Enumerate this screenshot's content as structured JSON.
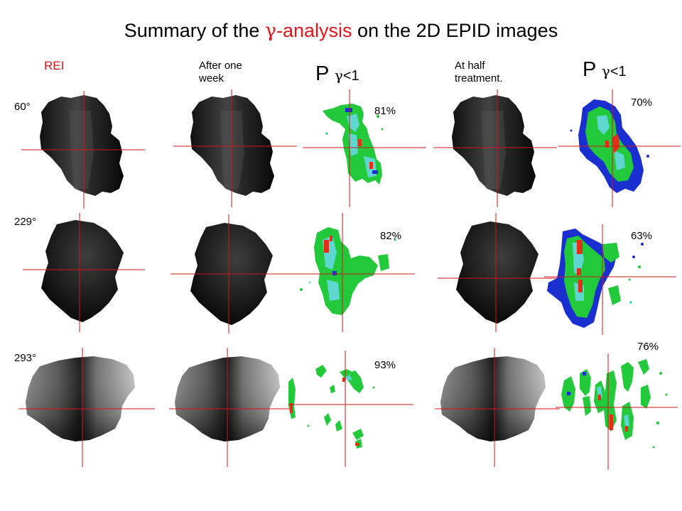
{
  "title": {
    "prefix": "Summary of the ",
    "gamma": "γ",
    "analysis": "-analysis",
    "suffix": " on the  2D EPID images"
  },
  "columns": {
    "rei": "REI",
    "after_one_week_line1": "After one",
    "after_one_week_line2": "week",
    "at_half_line1": "At  half",
    "at_half_line2": "treatment.",
    "p_letter": "P ",
    "gamma": "γ",
    "lt_one": "<1"
  },
  "rows": [
    {
      "angle": "60°",
      "pct_week": "81%",
      "pct_half": "70%"
    },
    {
      "angle": "229°",
      "pct_week": "82%",
      "pct_half": "63%"
    },
    {
      "angle": "293°",
      "pct_week": "93%",
      "pct_half": "76%"
    }
  ],
  "colors": {
    "accent_red": "#e0161b",
    "crosshair": "#d0161b",
    "gamma_green": "#22c93a",
    "gamma_cyan": "#5fd6d0",
    "gamma_blue": "#1a2fd0",
    "gamma_red": "#e0301a"
  }
}
